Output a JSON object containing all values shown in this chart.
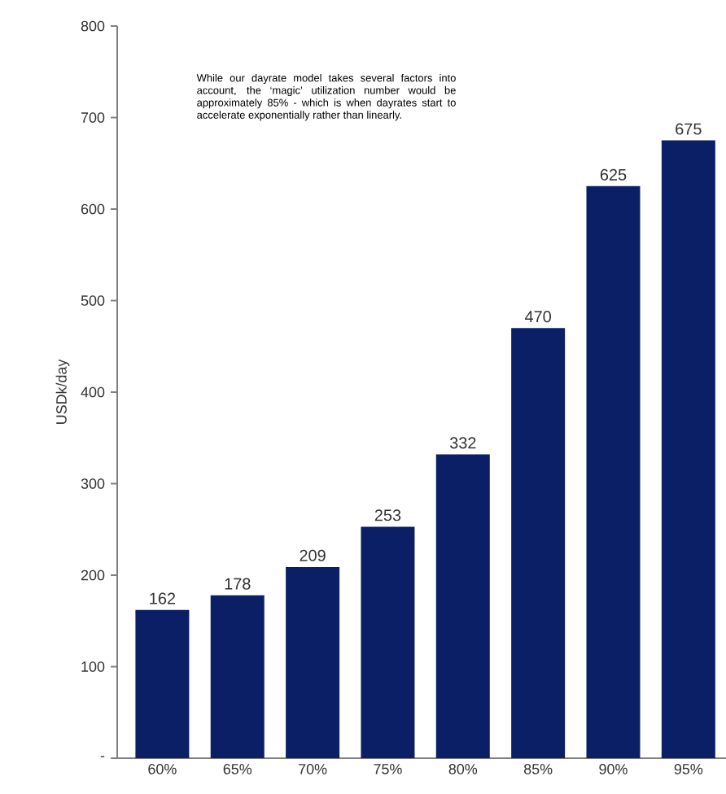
{
  "chart_data": {
    "type": "bar",
    "ylabel": "USDk/day",
    "categories": [
      "60%",
      "65%",
      "70%",
      "75%",
      "80%",
      "85%",
      "90%",
      "95%"
    ],
    "values": [
      162,
      178,
      209,
      253,
      332,
      470,
      625,
      675
    ],
    "color": "#0b1f66",
    "data_labels": true,
    "ylim": [
      0,
      800
    ],
    "yticks": [
      {
        "value": 0,
        "label": "-"
      },
      100,
      200,
      300,
      400,
      500,
      600,
      700,
      800
    ],
    "annotations": [
      "While our dayrate model takes several factors into account, the ‘magic’ utilization number would be approximately 85% - which is when dayrates start to accelerate exponentially rather than linearly."
    ]
  }
}
